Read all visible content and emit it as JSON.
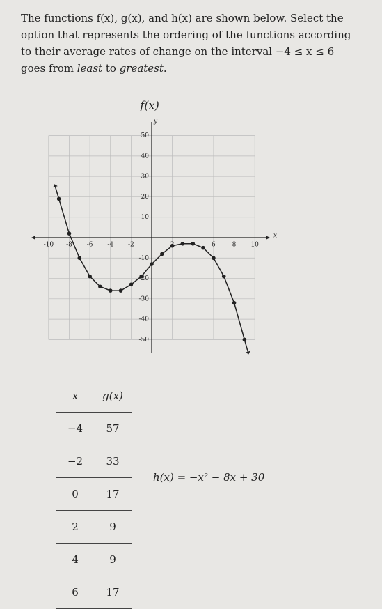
{
  "question": [
    "The functions f(x), g(x), and h(x) are shown below. Select the option that represents the ordering of the functions according to their average rates of change on the interval −4 ≤ x ≤ 6 goes from ",
    "least",
    " to ",
    "greatest",
    "."
  ],
  "chart_data": {
    "type": "line",
    "title": "f(x)",
    "x_label": "x",
    "y_label": "y",
    "x": [
      -9,
      -8,
      -7,
      -6,
      -5,
      -4,
      -3,
      -2,
      -1,
      0,
      1,
      2,
      3,
      4,
      5,
      6,
      7,
      8,
      9
    ],
    "values": [
      19,
      2,
      -10,
      -19,
      -24,
      -26,
      -26,
      -23,
      -19,
      -13,
      -8,
      -4,
      -3,
      -3,
      -5,
      -10,
      -19,
      -32,
      -50
    ],
    "color": "#222222",
    "xlim": [
      -11,
      11
    ],
    "ylim": [
      -55,
      55
    ],
    "xticks": [
      -10,
      -8,
      -6,
      -4,
      -2,
      2,
      6,
      8,
      10
    ],
    "yticks": [
      -50,
      -40,
      -30,
      -20,
      -10,
      10,
      20,
      30,
      40,
      50
    ],
    "grid": true
  },
  "table": {
    "header": [
      "x",
      "g(x)"
    ],
    "rows": [
      [
        "−4",
        "57"
      ],
      [
        "−2",
        "33"
      ],
      [
        "0",
        "17"
      ],
      [
        "2",
        "9"
      ],
      [
        "4",
        "9"
      ],
      [
        "6",
        "17"
      ]
    ]
  },
  "formula": "h(x) = −x² − 8x + 30"
}
